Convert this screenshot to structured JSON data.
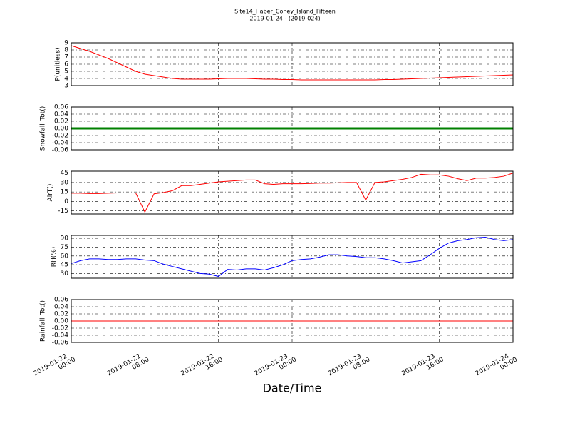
{
  "title": "Site14_Haber_Coney_Island_Fifteen",
  "subtitle": "2019-01-24 - (2019-024)",
  "xlabel": "Date/Time",
  "chart_data": [
    {
      "type": "line",
      "ylabel": "P(unitless)",
      "ylim": [
        3,
        9
      ],
      "yticks": [
        3,
        4,
        5,
        6,
        7,
        8,
        9
      ],
      "grid": true,
      "xlim": [
        "2019-01-22 00:00",
        "2019-01-24 00:00"
      ],
      "xticks": [
        "2019-01-22 00:00",
        "2019-01-22 08:00",
        "2019-01-22 16:00",
        "2019-01-23 00:00",
        "2019-01-23 08:00",
        "2019-01-23 16:00",
        "2019-01-24 00:00"
      ],
      "x": [
        "2019-01-22 00:00",
        "2019-01-22 01:00",
        "2019-01-22 02:00",
        "2019-01-22 03:00",
        "2019-01-22 04:00",
        "2019-01-22 05:00",
        "2019-01-22 06:00",
        "2019-01-22 07:00",
        "2019-01-22 08:00",
        "2019-01-22 09:00",
        "2019-01-22 10:00",
        "2019-01-22 11:00",
        "2019-01-22 12:00",
        "2019-01-22 13:00",
        "2019-01-22 14:00",
        "2019-01-22 15:00",
        "2019-01-22 16:00",
        "2019-01-22 17:00",
        "2019-01-22 18:00",
        "2019-01-22 19:00",
        "2019-01-22 20:00",
        "2019-01-22 21:00",
        "2019-01-22 22:00",
        "2019-01-22 23:00",
        "2019-01-23 00:00",
        "2019-01-23 01:00",
        "2019-01-23 02:00",
        "2019-01-23 03:00",
        "2019-01-23 04:00",
        "2019-01-23 05:00",
        "2019-01-23 06:00",
        "2019-01-23 07:00",
        "2019-01-23 08:00",
        "2019-01-23 09:00",
        "2019-01-23 10:00",
        "2019-01-23 11:00",
        "2019-01-23 12:00",
        "2019-01-23 13:00",
        "2019-01-23 14:00",
        "2019-01-23 15:00",
        "2019-01-23 16:00",
        "2019-01-23 17:00",
        "2019-01-23 18:00",
        "2019-01-23 19:00",
        "2019-01-23 20:00",
        "2019-01-23 21:00",
        "2019-01-23 22:00",
        "2019-01-23 23:00",
        "2019-01-24 00:00"
      ],
      "series": [
        {
          "color": "#ff0000",
          "values": [
            8.6,
            8.2,
            7.8,
            7.3,
            6.8,
            6.2,
            5.6,
            5.0,
            4.6,
            4.4,
            4.2,
            4.0,
            3.9,
            3.9,
            3.9,
            3.9,
            3.95,
            4.0,
            4.0,
            4.0,
            3.95,
            3.9,
            3.9,
            3.85,
            3.85,
            3.8,
            3.8,
            3.8,
            3.8,
            3.8,
            3.8,
            3.8,
            3.8,
            3.8,
            3.85,
            3.85,
            3.9,
            3.95,
            4.0,
            4.05,
            4.1,
            4.15,
            4.2,
            4.25,
            4.3,
            4.35,
            4.4,
            4.45,
            4.5
          ]
        }
      ]
    },
    {
      "type": "line",
      "ylabel": "Snowfall_Tot()",
      "ylim": [
        -0.06,
        0.06
      ],
      "yticks": [
        -0.06,
        -0.04,
        -0.02,
        {
          "value": 0,
          "label": "0.00"
        },
        0.02,
        0.04,
        0.06
      ],
      "grid": true,
      "xlim": [
        "2019-01-22 00:00",
        "2019-01-24 00:00"
      ],
      "xticks": [
        "2019-01-22 00:00",
        "2019-01-22 08:00",
        "2019-01-22 16:00",
        "2019-01-23 00:00",
        "2019-01-23 08:00",
        "2019-01-23 16:00",
        "2019-01-24 00:00"
      ],
      "x": [
        "2019-01-22 00:00",
        "2019-01-22 01:00",
        "2019-01-22 02:00",
        "2019-01-22 03:00",
        "2019-01-22 04:00",
        "2019-01-22 05:00",
        "2019-01-22 06:00",
        "2019-01-22 07:00",
        "2019-01-22 08:00",
        "2019-01-22 09:00",
        "2019-01-22 10:00",
        "2019-01-22 11:00",
        "2019-01-22 12:00",
        "2019-01-22 13:00",
        "2019-01-22 14:00",
        "2019-01-22 15:00",
        "2019-01-22 16:00",
        "2019-01-22 17:00",
        "2019-01-22 18:00",
        "2019-01-22 19:00",
        "2019-01-22 20:00",
        "2019-01-22 21:00",
        "2019-01-22 22:00",
        "2019-01-22 23:00",
        "2019-01-23 00:00",
        "2019-01-23 01:00",
        "2019-01-23 02:00",
        "2019-01-23 03:00",
        "2019-01-23 04:00",
        "2019-01-23 05:00",
        "2019-01-23 06:00",
        "2019-01-23 07:00",
        "2019-01-23 08:00",
        "2019-01-23 09:00",
        "2019-01-23 10:00",
        "2019-01-23 11:00",
        "2019-01-23 12:00",
        "2019-01-23 13:00",
        "2019-01-23 14:00",
        "2019-01-23 15:00",
        "2019-01-23 16:00",
        "2019-01-23 17:00",
        "2019-01-23 18:00",
        "2019-01-23 19:00",
        "2019-01-23 20:00",
        "2019-01-23 21:00",
        "2019-01-23 22:00",
        "2019-01-23 23:00",
        "2019-01-24 00:00"
      ],
      "series": [
        {
          "color": "#008000",
          "values": [
            0,
            0,
            0,
            0,
            0,
            0,
            0,
            0,
            0,
            0,
            0,
            0,
            0,
            0,
            0,
            0,
            0,
            0,
            0,
            0,
            0,
            0,
            0,
            0,
            0,
            0,
            0,
            0,
            0,
            0,
            0,
            0,
            0,
            0,
            0,
            0,
            0,
            0,
            0,
            0,
            0,
            0,
            0,
            0,
            0,
            0,
            0,
            0,
            0
          ]
        }
      ]
    },
    {
      "type": "line",
      "ylabel": "AirT()",
      "ylim": [
        -20,
        48
      ],
      "yticks": [
        -15,
        0,
        15,
        30,
        45
      ],
      "grid": true,
      "xlim": [
        "2019-01-22 00:00",
        "2019-01-24 00:00"
      ],
      "xticks": [
        "2019-01-22 00:00",
        "2019-01-22 08:00",
        "2019-01-22 16:00",
        "2019-01-23 00:00",
        "2019-01-23 08:00",
        "2019-01-23 16:00",
        "2019-01-24 00:00"
      ],
      "x": [
        "2019-01-22 00:00",
        "2019-01-22 01:00",
        "2019-01-22 02:00",
        "2019-01-22 03:00",
        "2019-01-22 04:00",
        "2019-01-22 05:00",
        "2019-01-22 06:00",
        "2019-01-22 07:00",
        "2019-01-22 08:00",
        "2019-01-22 09:00",
        "2019-01-22 10:00",
        "2019-01-22 11:00",
        "2019-01-22 12:00",
        "2019-01-22 13:00",
        "2019-01-22 14:00",
        "2019-01-22 15:00",
        "2019-01-22 16:00",
        "2019-01-22 17:00",
        "2019-01-22 18:00",
        "2019-01-22 19:00",
        "2019-01-22 20:00",
        "2019-01-22 21:00",
        "2019-01-22 22:00",
        "2019-01-22 23:00",
        "2019-01-23 00:00",
        "2019-01-23 01:00",
        "2019-01-23 02:00",
        "2019-01-23 03:00",
        "2019-01-23 04:00",
        "2019-01-23 05:00",
        "2019-01-23 06:00",
        "2019-01-23 07:00",
        "2019-01-23 08:00",
        "2019-01-23 09:00",
        "2019-01-23 10:00",
        "2019-01-23 11:00",
        "2019-01-23 12:00",
        "2019-01-23 13:00",
        "2019-01-23 14:00",
        "2019-01-23 15:00",
        "2019-01-23 16:00",
        "2019-01-23 17:00",
        "2019-01-23 18:00",
        "2019-01-23 19:00",
        "2019-01-23 20:00",
        "2019-01-23 21:00",
        "2019-01-23 22:00",
        "2019-01-23 23:00",
        "2019-01-24 00:00"
      ],
      "series": [
        {
          "color": "#ff0000",
          "values": [
            13,
            13,
            12.5,
            12.5,
            13,
            13.5,
            13.5,
            13.5,
            -17,
            12,
            14,
            17,
            25,
            25,
            27,
            29,
            31,
            32,
            33,
            34,
            34,
            28,
            27,
            28,
            28,
            28,
            28.5,
            29,
            29,
            29.5,
            30,
            30,
            2,
            30,
            31,
            33,
            35,
            38,
            43,
            42,
            42,
            40,
            36,
            33,
            37,
            37,
            38,
            40,
            45
          ]
        }
      ]
    },
    {
      "type": "line",
      "ylabel": "RH(%)",
      "ylim": [
        22,
        95
      ],
      "yticks": [
        30,
        45,
        60,
        75,
        90
      ],
      "grid": true,
      "xlim": [
        "2019-01-22 00:00",
        "2019-01-24 00:00"
      ],
      "xticks": [
        "2019-01-22 00:00",
        "2019-01-22 08:00",
        "2019-01-22 16:00",
        "2019-01-23 00:00",
        "2019-01-23 08:00",
        "2019-01-23 16:00",
        "2019-01-24 00:00"
      ],
      "x": [
        "2019-01-22 00:00",
        "2019-01-22 01:00",
        "2019-01-22 02:00",
        "2019-01-22 03:00",
        "2019-01-22 04:00",
        "2019-01-22 05:00",
        "2019-01-22 06:00",
        "2019-01-22 07:00",
        "2019-01-22 08:00",
        "2019-01-22 09:00",
        "2019-01-22 10:00",
        "2019-01-22 11:00",
        "2019-01-22 12:00",
        "2019-01-22 13:00",
        "2019-01-22 14:00",
        "2019-01-22 15:00",
        "2019-01-22 16:00",
        "2019-01-22 17:00",
        "2019-01-22 18:00",
        "2019-01-22 19:00",
        "2019-01-22 20:00",
        "2019-01-22 21:00",
        "2019-01-22 22:00",
        "2019-01-22 23:00",
        "2019-01-23 00:00",
        "2019-01-23 01:00",
        "2019-01-23 02:00",
        "2019-01-23 03:00",
        "2019-01-23 04:00",
        "2019-01-23 05:00",
        "2019-01-23 06:00",
        "2019-01-23 07:00",
        "2019-01-23 08:00",
        "2019-01-23 09:00",
        "2019-01-23 10:00",
        "2019-01-23 11:00",
        "2019-01-23 12:00",
        "2019-01-23 13:00",
        "2019-01-23 14:00",
        "2019-01-23 15:00",
        "2019-01-23 16:00",
        "2019-01-23 17:00",
        "2019-01-23 18:00",
        "2019-01-23 19:00",
        "2019-01-23 20:00",
        "2019-01-23 21:00",
        "2019-01-23 22:00",
        "2019-01-23 23:00",
        "2019-01-24 00:00"
      ],
      "series": [
        {
          "color": "#0000ff",
          "values": [
            47,
            52,
            55,
            55,
            54,
            54,
            55,
            55,
            53,
            52,
            46,
            42,
            38,
            34,
            30,
            29,
            25,
            37,
            36,
            38,
            38,
            36,
            40,
            45,
            52,
            54,
            55,
            58,
            62,
            62,
            60,
            59,
            57,
            57,
            55,
            52,
            48,
            50,
            52,
            62,
            73,
            82,
            86,
            88,
            91,
            92,
            88,
            86,
            88
          ]
        }
      ]
    },
    {
      "type": "line",
      "ylabel": "Rainfall_Tot()",
      "ylim": [
        -0.06,
        0.06
      ],
      "yticks": [
        -0.06,
        -0.04,
        -0.02,
        {
          "value": 0,
          "label": "0.00"
        },
        0.02,
        0.04,
        0.06
      ],
      "grid": true,
      "xlim": [
        "2019-01-22 00:00",
        "2019-01-24 00:00"
      ],
      "xticks": [
        "2019-01-22 00:00",
        "2019-01-22 08:00",
        "2019-01-22 16:00",
        "2019-01-23 00:00",
        "2019-01-23 08:00",
        "2019-01-23 16:00",
        "2019-01-24 00:00"
      ],
      "x": [
        "2019-01-22 00:00",
        "2019-01-22 01:00",
        "2019-01-22 02:00",
        "2019-01-22 03:00",
        "2019-01-22 04:00",
        "2019-01-22 05:00",
        "2019-01-22 06:00",
        "2019-01-22 07:00",
        "2019-01-22 08:00",
        "2019-01-22 09:00",
        "2019-01-22 10:00",
        "2019-01-22 11:00",
        "2019-01-22 12:00",
        "2019-01-22 13:00",
        "2019-01-22 14:00",
        "2019-01-22 15:00",
        "2019-01-22 16:00",
        "2019-01-22 17:00",
        "2019-01-22 18:00",
        "2019-01-22 19:00",
        "2019-01-22 20:00",
        "2019-01-22 21:00",
        "2019-01-22 22:00",
        "2019-01-22 23:00",
        "2019-01-23 00:00",
        "2019-01-23 01:00",
        "2019-01-23 02:00",
        "2019-01-23 03:00",
        "2019-01-23 04:00",
        "2019-01-23 05:00",
        "2019-01-23 06:00",
        "2019-01-23 07:00",
        "2019-01-23 08:00",
        "2019-01-23 09:00",
        "2019-01-23 10:00",
        "2019-01-23 11:00",
        "2019-01-23 12:00",
        "2019-01-23 13:00",
        "2019-01-23 14:00",
        "2019-01-23 15:00",
        "2019-01-23 16:00",
        "2019-01-23 17:00",
        "2019-01-23 18:00",
        "2019-01-23 19:00",
        "2019-01-23 20:00",
        "2019-01-23 21:00",
        "2019-01-23 22:00",
        "2019-01-23 23:00",
        "2019-01-24 00:00"
      ],
      "series": [
        {
          "color": "#ff0000",
          "values": [
            0,
            0,
            0,
            0,
            0,
            0,
            0,
            0,
            0,
            0,
            0,
            0,
            0,
            0,
            0,
            0,
            0,
            0,
            0,
            0,
            0,
            0,
            0,
            0,
            0,
            0,
            0,
            0,
            0,
            0,
            0,
            0,
            0,
            0,
            0,
            0,
            0,
            0,
            0,
            0,
            0,
            0,
            0,
            0,
            0,
            0,
            0,
            0,
            0
          ]
        }
      ]
    }
  ]
}
